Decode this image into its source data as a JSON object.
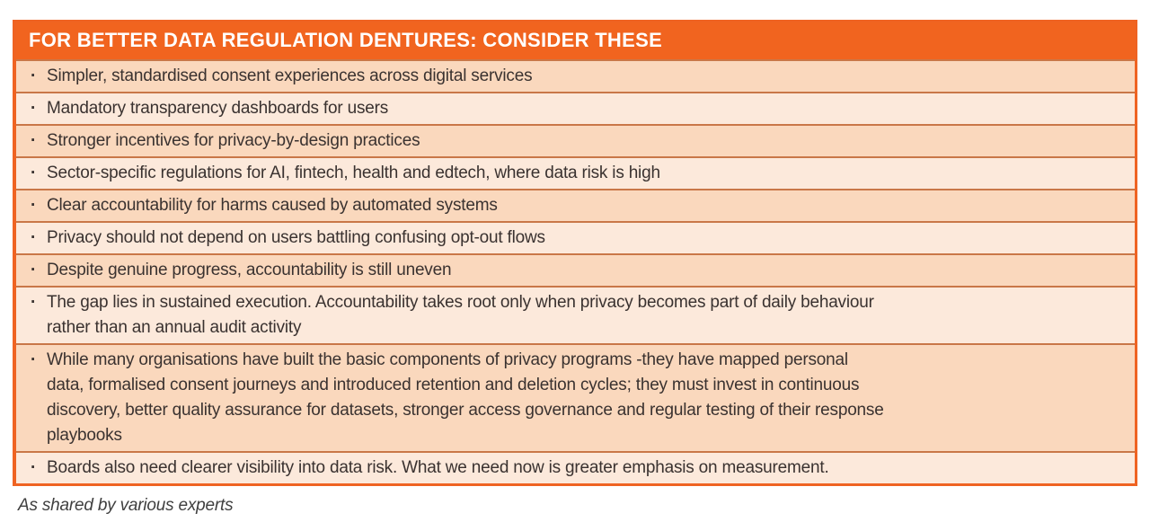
{
  "page": {
    "title": "FOR BETTER DATA REGULATION DENTURES: CONSIDER THESE",
    "bullet": "·",
    "items": [
      "Simpler, standardised consent experiences across digital services",
      "Mandatory transparency dashboards for users",
      "Stronger incentives for privacy-by-design practices",
      "Sector-specific regulations for AI, fintech, health and edtech, where data risk is high",
      "Clear accountability for harms caused by automated systems",
      "Privacy should not depend on users battling confusing opt-out flows",
      "Despite genuine progress, accountability is still uneven",
      "The gap lies in sustained execution. Accountability takes root only when privacy becomes part of daily behaviour\nrather than an annual audit activity",
      "While many organisations have built the basic components of privacy programs -they have mapped personal\ndata, formalised consent journeys and introduced retention and deletion cycles; they must invest in continuous\ndiscovery, better quality assurance for datasets, stronger access governance and regular testing of their response\nplaybooks",
      "Boards also need clearer visibility into data risk. What we need now is greater emphasis on measurement."
    ],
    "footer_note": "As shared by various experts",
    "colors": {
      "header_bg": "#F1641F",
      "header_text": "#FFFFFF",
      "row_dark": "#FAD8BD",
      "row_light": "#FCE9DB",
      "divider": "#C97748",
      "outer_border": "#EF6322",
      "body_text": "#3A3230",
      "footer_text": "#3F3F3F"
    }
  }
}
